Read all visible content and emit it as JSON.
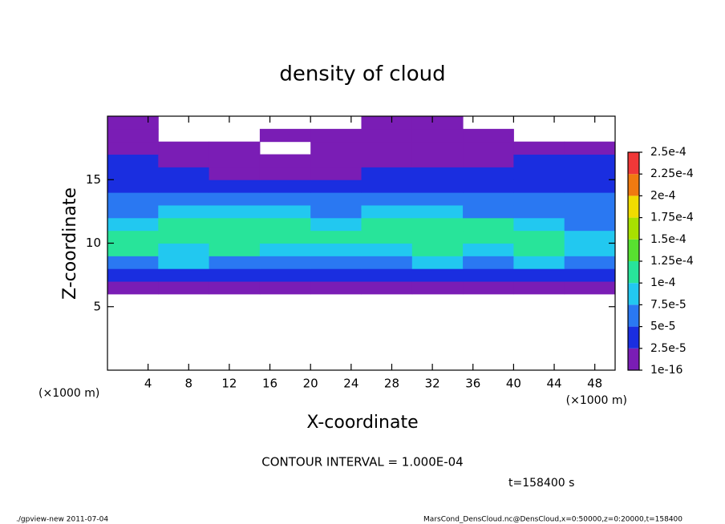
{
  "chart_data": {
    "type": "heatmap",
    "title": "density of cloud",
    "x_label": "X-coordinate",
    "y_label": "Z-coordinate",
    "x_unit": "(×1000 m)",
    "y_unit": "(×1000 m)",
    "contour_text": "CONTOUR INTERVAL = 1.000E-04",
    "time_text": "t=158400 s",
    "footer_left": "./gpview-new  2011-07-04",
    "footer_right": "MarsCond_DensCloud.nc@DensCloud,x=0:50000,z=0:20000,t=158400",
    "xlim": [
      0,
      50
    ],
    "ylim": [
      0,
      20
    ],
    "xticks": [
      4,
      8,
      12,
      16,
      20,
      24,
      28,
      32,
      36,
      40,
      44,
      48
    ],
    "yticks": [
      5,
      10,
      15
    ],
    "x_bins": [
      0,
      5,
      10,
      15,
      20,
      25,
      30,
      35,
      40,
      45,
      50
    ],
    "y_bins": [
      0,
      1,
      2,
      3,
      4,
      5,
      6,
      7,
      8,
      9,
      10,
      11,
      12,
      13,
      14,
      15,
      16,
      17,
      18,
      19,
      20
    ],
    "values": [
      [
        null,
        null,
        null,
        null,
        null,
        null,
        null,
        null,
        null,
        null
      ],
      [
        null,
        null,
        null,
        null,
        null,
        null,
        null,
        null,
        null,
        null
      ],
      [
        null,
        null,
        null,
        null,
        null,
        null,
        null,
        null,
        null,
        null
      ],
      [
        null,
        null,
        null,
        null,
        null,
        null,
        null,
        null,
        null,
        null
      ],
      [
        null,
        null,
        null,
        null,
        null,
        null,
        null,
        null,
        null,
        null
      ],
      [
        null,
        null,
        null,
        null,
        null,
        null,
        null,
        null,
        null,
        null
      ],
      [
        1e-05,
        1e-05,
        1e-05,
        1e-05,
        1e-05,
        1e-05,
        1e-05,
        1e-05,
        1e-05,
        1e-05
      ],
      [
        4.5e-05,
        4e-05,
        4e-05,
        4.5e-05,
        3.5e-05,
        4e-05,
        4e-05,
        4.5e-05,
        4e-05,
        4e-05
      ],
      [
        7e-05,
        7.5e-05,
        7e-05,
        7e-05,
        6e-05,
        7e-05,
        7.5e-05,
        7e-05,
        7.5e-05,
        7e-05
      ],
      [
        0.000102,
        9.5e-05,
        0.0001,
        9e-05,
        8.5e-05,
        9.5e-05,
        0.0001,
        9.5e-05,
        0.0001,
        9.5e-05
      ],
      [
        0.00011,
        0.000115,
        0.00012,
        0.000105,
        0.0001,
        0.000115,
        0.00012,
        0.00011,
        0.000105,
        9e-05
      ],
      [
        9e-05,
        0.00011,
        0.00011,
        0.000105,
        9.5e-05,
        0.00011,
        0.00011,
        0.000105,
        8.5e-05,
        7e-05
      ],
      [
        7e-05,
        8e-05,
        8e-05,
        7.5e-05,
        7e-05,
        7.5e-05,
        8e-05,
        7e-05,
        6.5e-05,
        6e-05
      ],
      [
        5.5e-05,
        6e-05,
        5.5e-05,
        5e-05,
        5e-05,
        5e-05,
        5.5e-05,
        5.5e-05,
        5.5e-05,
        5.5e-05
      ],
      [
        4e-05,
        4e-05,
        3.5e-05,
        3e-05,
        3.5e-05,
        3.5e-05,
        4e-05,
        4e-05,
        4e-05,
        4e-05
      ],
      [
        3e-05,
        3e-05,
        2e-05,
        1.5e-05,
        2e-05,
        2.5e-05,
        3e-05,
        3e-05,
        3e-05,
        3e-05
      ],
      [
        2.6e-05,
        1.5e-05,
        1e-05,
        1e-05,
        1e-05,
        1e-05,
        1.5e-05,
        2e-05,
        2.6e-05,
        2.6e-05
      ],
      [
        1e-05,
        1e-05,
        1e-05,
        null,
        1e-05,
        1e-05,
        1e-05,
        1e-05,
        1e-05,
        1e-05
      ],
      [
        1e-05,
        null,
        null,
        1e-05,
        1e-05,
        1e-05,
        1e-05,
        1e-05,
        null,
        null
      ],
      [
        1e-05,
        null,
        null,
        null,
        null,
        1e-05,
        1e-05,
        null,
        null,
        null
      ]
    ],
    "levels": [
      {
        "value": 1e-16,
        "label": "1e-16"
      },
      {
        "value": 2.5e-05,
        "label": "2.5e-5"
      },
      {
        "value": 5e-05,
        "label": "5e-5"
      },
      {
        "value": 7.5e-05,
        "label": "7.5e-5"
      },
      {
        "value": 0.0001,
        "label": "1e-4"
      },
      {
        "value": 0.000125,
        "label": "1.25e-4"
      },
      {
        "value": 0.00015,
        "label": "1.5e-4"
      },
      {
        "value": 0.000175,
        "label": "1.75e-4"
      },
      {
        "value": 0.0002,
        "label": "2e-4"
      },
      {
        "value": 0.000225,
        "label": "2.25e-4"
      },
      {
        "value": 0.00025,
        "label": "2.5e-4"
      }
    ],
    "colors": [
      "#7a1db5",
      "#1a2ee0",
      "#2a78f2",
      "#22c8f0",
      "#28e49a",
      "#58e030",
      "#a8e000",
      "#f0dc00",
      "#f07a10",
      "#f03838"
    ]
  }
}
